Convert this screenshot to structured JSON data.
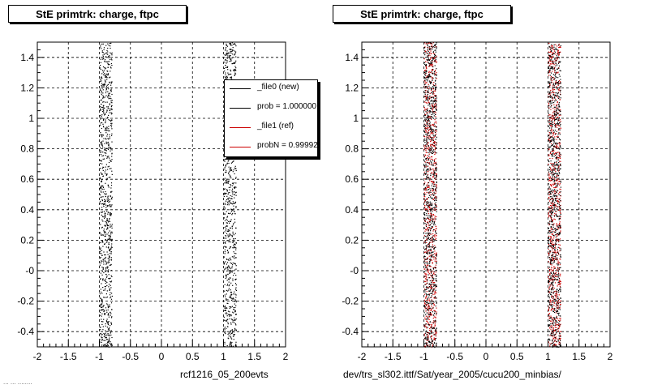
{
  "left_panel": {
    "title": "StE primtrk: charge, ftpc",
    "footer": "rcf1216_05_200evts",
    "legend": [
      {
        "label": "_file0 (new)",
        "color": "#000000"
      },
      {
        "label": "prob = 1.000000",
        "color": "#000000"
      },
      {
        "label": "_file1 (ref)",
        "color": "#cc0000"
      },
      {
        "label": "probN = 0.99992",
        "color": "#cc0000"
      }
    ]
  },
  "right_panel": {
    "title": "StE primtrk: charge, ftpc",
    "footer": "dev/trs_sl302.ittf/Sat/year_2005/cucu200_minbias/"
  },
  "stamp": "... ... ........",
  "chart_data": [
    {
      "type": "scatter",
      "title": "StE primtrk: charge, ftpc",
      "xlabel": "rcf1216_05_200evts",
      "ylabel": "",
      "xlim": [
        -2,
        2
      ],
      "ylim": [
        -0.5,
        1.5
      ],
      "x_ticks": [
        "-2",
        "-1.5",
        "-1",
        "-0.5",
        "0",
        "0.5",
        "1",
        "1.5",
        "2"
      ],
      "y_ticks": [
        "-0.4",
        "-0.2",
        "-0",
        "0.2",
        "0.4",
        "0.6",
        "0.8",
        "1",
        "1.2",
        "1.4"
      ],
      "grid": true,
      "legend_position": "top-right",
      "series": [
        {
          "name": "_file0 (new)",
          "color": "#000000",
          "bands": [
            [
              -1.0,
              -0.8
            ],
            [
              1.0,
              1.2
            ]
          ]
        }
      ]
    },
    {
      "type": "scatter",
      "title": "StE primtrk: charge, ftpc",
      "xlabel": "dev/trs_sl302.ittf/Sat/year_2005/cucu200_minbias/",
      "ylabel": "",
      "xlim": [
        -2,
        2
      ],
      "ylim": [
        -0.5,
        1.5
      ],
      "x_ticks": [
        "-2",
        "-1.5",
        "-1",
        "-0.5",
        "0",
        "0.5",
        "1",
        "1.5",
        "2"
      ],
      "y_ticks": [
        "-0.4",
        "-0.2",
        "-0",
        "0.2",
        "0.4",
        "0.6",
        "0.8",
        "1",
        "1.2",
        "1.4"
      ],
      "grid": true,
      "series": [
        {
          "name": "_file1 (ref)",
          "color": "#cc0000",
          "bands": [
            [
              -1.0,
              -0.8
            ],
            [
              1.0,
              1.2
            ]
          ]
        },
        {
          "name": "_file0 (new)",
          "color": "#000000",
          "bands": [
            [
              -1.0,
              -0.8
            ],
            [
              1.0,
              1.2
            ]
          ]
        }
      ]
    }
  ]
}
